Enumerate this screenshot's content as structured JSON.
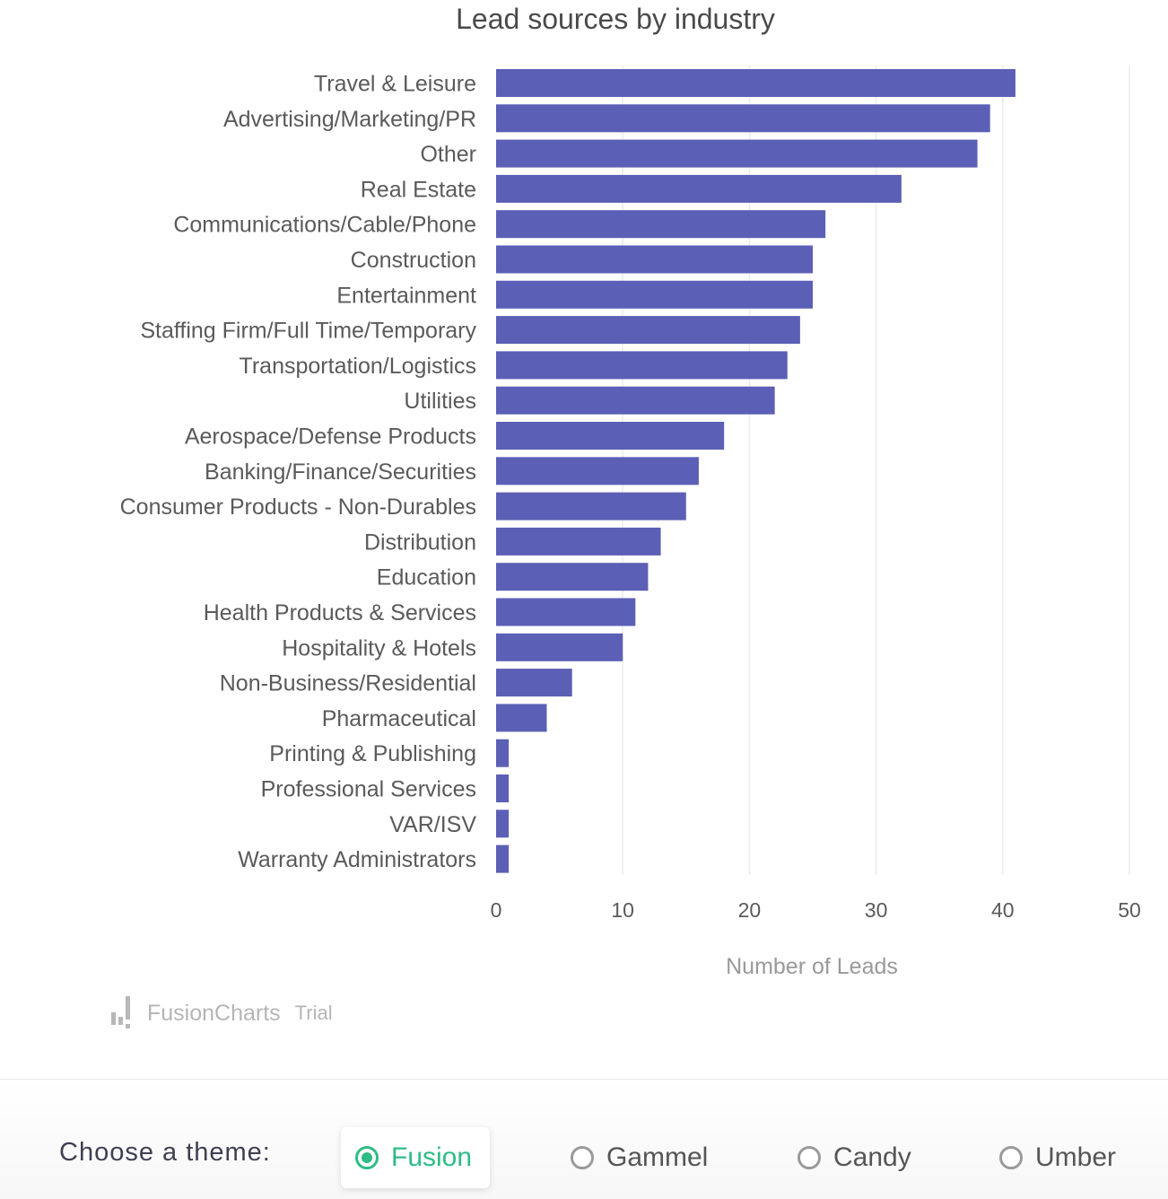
{
  "chart_data": {
    "type": "bar",
    "orientation": "horizontal",
    "title": "Lead sources by industry",
    "xlabel": "Number of Leads",
    "ylabel": "",
    "xlim": [
      0,
      50
    ],
    "ticks": [
      0,
      10,
      20,
      30,
      40,
      50
    ],
    "grid": true,
    "bar_color": "#5b5fb5",
    "categories": [
      "Travel & Leisure",
      "Advertising/Marketing/PR",
      "Other",
      "Real Estate",
      "Communications/Cable/Phone",
      "Construction",
      "Entertainment",
      "Staffing Firm/Full Time/Temporary",
      "Transportation/Logistics",
      "Utilities",
      "Aerospace/Defense Products",
      "Banking/Finance/Securities",
      "Consumer Products - Non-Durables",
      "Distribution",
      "Education",
      "Health Products & Services",
      "Hospitality & Hotels",
      "Non-Business/Residential",
      "Pharmaceutical",
      "Printing & Publishing",
      "Professional Services",
      "VAR/ISV",
      "Warranty Administrators"
    ],
    "values": [
      41,
      39,
      38,
      32,
      26,
      25,
      25,
      24,
      23,
      22,
      18,
      16,
      15,
      13,
      12,
      11,
      10,
      6,
      4,
      1,
      1,
      1,
      1
    ]
  },
  "watermark": {
    "brand": "FusionCharts",
    "suffix": "Trial"
  },
  "theme_picker": {
    "label": "Choose a theme:",
    "options": [
      {
        "label": "Fusion",
        "selected": true
      },
      {
        "label": "Gammel",
        "selected": false
      },
      {
        "label": "Candy",
        "selected": false
      },
      {
        "label": "Umber",
        "selected": false
      }
    ],
    "accent_color": "#2ebc85"
  }
}
